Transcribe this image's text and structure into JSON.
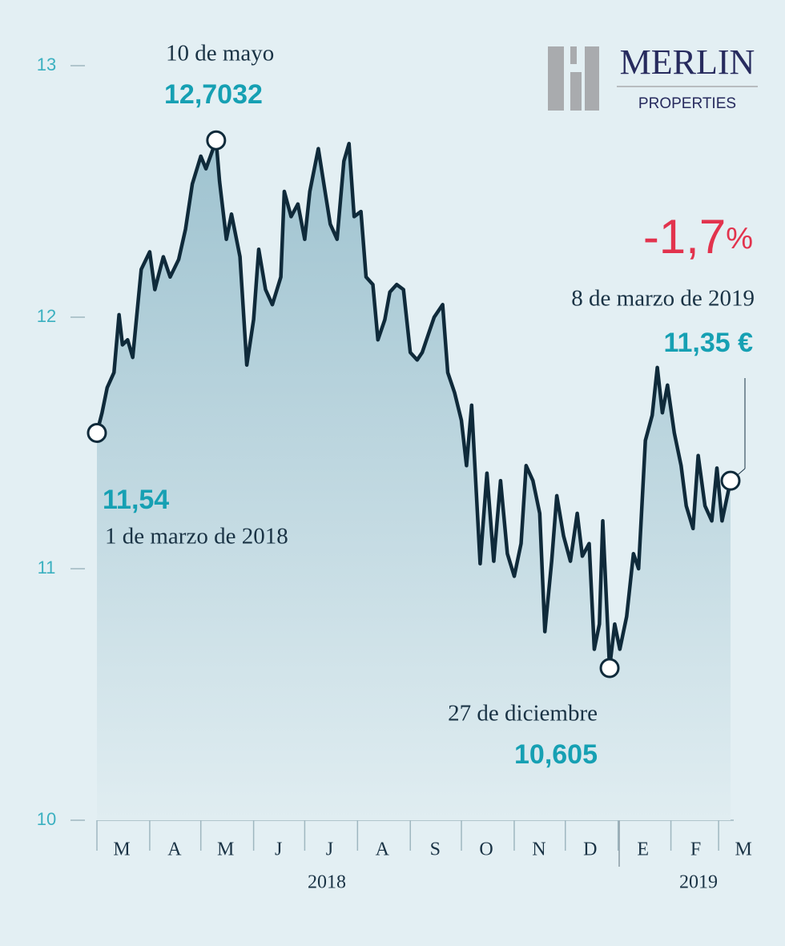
{
  "chart_data": {
    "type": "line",
    "x": [
      0,
      3,
      6,
      10,
      13,
      15,
      18,
      21,
      26,
      31,
      34,
      39,
      43,
      48,
      52,
      56,
      61,
      64,
      70,
      72,
      76,
      79,
      84,
      88,
      92,
      95,
      99,
      103,
      108,
      110,
      114,
      118,
      122,
      125,
      130,
      133,
      137,
      141,
      145,
      148,
      151,
      155,
      158,
      162,
      165,
      169,
      172,
      176,
      180,
      184,
      188,
      191,
      195,
      198,
      203,
      206,
      210,
      214,
      217,
      220,
      225,
      229,
      233,
      237,
      241,
      245,
      249,
      252,
      256,
      260,
      263,
      267,
      270,
      274,
      278,
      282,
      285,
      289,
      292,
      295,
      297,
      301,
      304,
      307,
      311,
      315,
      318,
      322,
      326,
      329,
      332,
      335,
      339,
      343,
      346,
      350,
      353,
      357,
      361,
      364,
      367,
      372
    ],
    "values": [
      11.54,
      11.62,
      11.72,
      11.78,
      12.01,
      11.89,
      11.91,
      11.84,
      12.19,
      12.26,
      12.11,
      12.24,
      12.16,
      12.23,
      12.35,
      12.53,
      12.64,
      12.59,
      12.7032,
      12.54,
      12.31,
      12.41,
      12.24,
      11.81,
      11.99,
      12.27,
      12.11,
      12.05,
      12.16,
      12.5,
      12.4,
      12.45,
      12.31,
      12.5,
      12.67,
      12.54,
      12.37,
      12.31,
      12.62,
      12.69,
      12.4,
      12.42,
      12.16,
      12.13,
      11.91,
      11.99,
      12.1,
      12.13,
      12.11,
      11.86,
      11.83,
      11.86,
      11.94,
      12.0,
      12.05,
      11.78,
      11.7,
      11.59,
      11.41,
      11.65,
      11.02,
      11.38,
      11.03,
      11.35,
      11.06,
      10.97,
      11.1,
      11.41,
      11.35,
      11.22,
      10.75,
      11.03,
      11.29,
      11.13,
      11.03,
      11.22,
      11.05,
      11.1,
      10.68,
      10.78,
      11.19,
      10.605,
      10.78,
      10.68,
      10.81,
      11.06,
      11.0,
      11.51,
      11.61,
      11.8,
      11.62,
      11.73,
      11.54,
      11.41,
      11.25,
      11.16,
      11.45,
      11.25,
      11.19,
      11.4,
      11.19,
      11.35
    ],
    "color": "#0f2a3a",
    "xlim": [
      0,
      372
    ],
    "ylim": [
      10,
      13
    ],
    "yticks": [
      10,
      11,
      12,
      13
    ],
    "xticks": [
      {
        "value": 0,
        "label": "M"
      },
      {
        "value": 31,
        "label": "A"
      },
      {
        "value": 61,
        "label": "M"
      },
      {
        "value": 92,
        "label": "J"
      },
      {
        "value": 122,
        "label": "J"
      },
      {
        "value": 153,
        "label": "A"
      },
      {
        "value": 184,
        "label": "S"
      },
      {
        "value": 214,
        "label": "O"
      },
      {
        "value": 245,
        "label": "N"
      },
      {
        "value": 275,
        "label": "D"
      },
      {
        "value": 306,
        "label": "E"
      },
      {
        "value": 337,
        "label": "F"
      },
      {
        "value": 365,
        "label": "M"
      }
    ],
    "years": [
      "2018",
      "2019"
    ],
    "annotations": {
      "max": {
        "date": "10 de mayo",
        "label": "12,7032"
      },
      "first": {
        "date": "1 de marzo de 2018",
        "label": "11,54"
      },
      "min": {
        "date": "27 de diciembre",
        "label": "10,605"
      },
      "last": {
        "date": "8 de marzo de 2019",
        "label": "11,35 €",
        "change": "-1,7",
        "change_unit": "%"
      }
    },
    "logo": {
      "name": "MERLIN",
      "sub": "PROPERTIES"
    }
  }
}
